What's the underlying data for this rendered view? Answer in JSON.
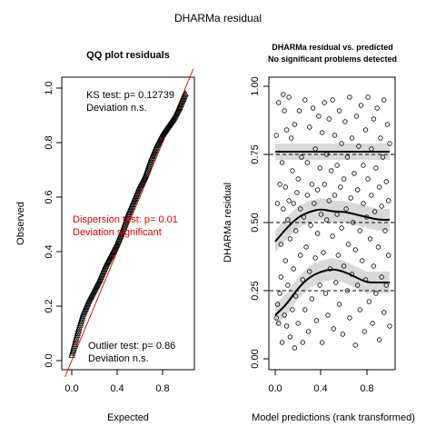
{
  "page": {
    "title": "DHARMa residual"
  },
  "qq": {
    "title": "QQ plot residuals",
    "xlabel": "Expected",
    "ylabel": "Observed",
    "xticks": [
      "0.0",
      "0.4",
      "0.8"
    ],
    "yticks": [
      "0.0",
      "0.2",
      "0.4",
      "0.6",
      "0.8",
      "1.0"
    ],
    "ks_line1": "KS test: p= 0.12739",
    "ks_line2": "Deviation  n.s.",
    "disp_line1": "Dispersion test: p= 0.01",
    "disp_line2": "Deviation significant",
    "out_line1": "Outlier test: p= 0.86",
    "out_line2": "Deviation  n.s."
  },
  "rvp": {
    "title1": "DHARMa residual vs. predicted",
    "title2": "No significant problems detected",
    "xlabel": "Model predictions (rank transformed)",
    "ylabel": "DHARMa residual",
    "xticks": [
      "0.0",
      "0.4",
      "0.8"
    ],
    "yticks": [
      "0.00",
      "0.25",
      "0.50",
      "0.75",
      "1.00"
    ]
  },
  "colors": {
    "significant": "#dd0000",
    "refline": "#dd0000",
    "band": "#d9d9d9",
    "ink": "#000000"
  },
  "chart_data": [
    {
      "type": "scatter",
      "title": "QQ plot residuals",
      "xlabel": "Expected",
      "ylabel": "Observed",
      "xlim": [
        0,
        1
      ],
      "ylim": [
        0,
        1
      ],
      "marker": "triangle",
      "reference_line": {
        "slope": 1,
        "intercept": 0
      },
      "quantile_curve": [
        [
          0.0,
          0.02
        ],
        [
          0.05,
          0.1
        ],
        [
          0.1,
          0.17
        ],
        [
          0.15,
          0.22
        ],
        [
          0.2,
          0.26
        ],
        [
          0.25,
          0.3
        ],
        [
          0.3,
          0.35
        ],
        [
          0.35,
          0.39
        ],
        [
          0.4,
          0.43
        ],
        [
          0.45,
          0.48
        ],
        [
          0.5,
          0.54
        ],
        [
          0.55,
          0.59
        ],
        [
          0.6,
          0.64
        ],
        [
          0.65,
          0.68
        ],
        [
          0.7,
          0.74
        ],
        [
          0.75,
          0.79
        ],
        [
          0.8,
          0.83
        ],
        [
          0.85,
          0.86
        ],
        [
          0.9,
          0.89
        ],
        [
          0.95,
          0.93
        ],
        [
          1.0,
          0.98
        ]
      ],
      "annotations": [
        "KS test: p= 0.12739",
        "Deviation  n.s.",
        "Dispersion test: p= 0.01",
        "Deviation significant",
        "Outlier test: p= 0.86",
        "Deviation  n.s."
      ]
    },
    {
      "type": "scatter",
      "title": "DHARMa residual vs. predicted",
      "subtitle": "No significant problems detected",
      "xlabel": "Model predictions (rank transformed)",
      "ylabel": "DHARMa residual",
      "xlim": [
        0,
        1
      ],
      "ylim": [
        0,
        1
      ],
      "reference_lines": [
        0.25,
        0.5,
        0.75
      ],
      "quantile_curves": [
        {
          "level": 0.25,
          "points": [
            [
              0.0,
              0.16
            ],
            [
              0.1,
              0.2
            ],
            [
              0.2,
              0.26
            ],
            [
              0.3,
              0.3
            ],
            [
              0.4,
              0.32
            ],
            [
              0.5,
              0.33
            ],
            [
              0.6,
              0.32
            ],
            [
              0.7,
              0.3
            ],
            [
              0.8,
              0.28
            ],
            [
              0.9,
              0.28
            ],
            [
              1.0,
              0.28
            ]
          ],
          "band_halfwidth": 0.04
        },
        {
          "level": 0.5,
          "points": [
            [
              0.0,
              0.43
            ],
            [
              0.1,
              0.48
            ],
            [
              0.2,
              0.52
            ],
            [
              0.3,
              0.54
            ],
            [
              0.4,
              0.55
            ],
            [
              0.5,
              0.54
            ],
            [
              0.6,
              0.54
            ],
            [
              0.7,
              0.53
            ],
            [
              0.8,
              0.52
            ],
            [
              0.9,
              0.51
            ],
            [
              1.0,
              0.51
            ]
          ],
          "band_halfwidth": 0.04
        },
        {
          "level": 0.75,
          "points": [
            [
              0.0,
              0.76
            ],
            [
              0.2,
              0.76
            ],
            [
              0.4,
              0.76
            ],
            [
              0.6,
              0.76
            ],
            [
              0.8,
              0.76
            ],
            [
              1.0,
              0.76
            ]
          ],
          "band_halfwidth": 0.03
        }
      ],
      "points": [
        [
          0.01,
          0.15
        ],
        [
          0.01,
          0.82
        ],
        [
          0.02,
          0.2
        ],
        [
          0.02,
          0.57
        ],
        [
          0.03,
          0.13
        ],
        [
          0.03,
          0.94
        ],
        [
          0.04,
          0.24
        ],
        [
          0.04,
          0.64
        ],
        [
          0.05,
          0.42
        ],
        [
          0.05,
          0.3
        ],
        [
          0.06,
          0.06
        ],
        [
          0.06,
          0.72
        ],
        [
          0.07,
          0.55
        ],
        [
          0.07,
          0.97
        ],
        [
          0.08,
          0.16
        ],
        [
          0.08,
          0.91
        ],
        [
          0.09,
          0.36
        ],
        [
          0.09,
          0.63
        ],
        [
          0.1,
          0.12
        ],
        [
          0.1,
          0.84
        ],
        [
          0.11,
          0.27
        ],
        [
          0.11,
          0.51
        ],
        [
          0.12,
          0.58
        ],
        [
          0.12,
          0.96
        ],
        [
          0.13,
          0.08
        ],
        [
          0.13,
          0.44
        ],
        [
          0.14,
          0.81
        ],
        [
          0.15,
          0.18
        ],
        [
          0.15,
          0.69
        ],
        [
          0.16,
          0.33
        ],
        [
          0.16,
          0.57
        ],
        [
          0.17,
          0.04
        ],
        [
          0.17,
          0.86
        ],
        [
          0.18,
          0.47
        ],
        [
          0.18,
          0.23
        ],
        [
          0.19,
          0.61
        ],
        [
          0.2,
          0.13
        ],
        [
          0.2,
          0.66
        ],
        [
          0.21,
          0.91
        ],
        [
          0.22,
          0.38
        ],
        [
          0.22,
          0.55
        ],
        [
          0.23,
          0.74
        ],
        [
          0.24,
          0.29
        ],
        [
          0.24,
          0.06
        ],
        [
          0.25,
          0.52
        ],
        [
          0.26,
          0.95
        ],
        [
          0.26,
          0.18
        ],
        [
          0.27,
          0.41
        ],
        [
          0.28,
          0.6
        ],
        [
          0.28,
          0.72
        ],
        [
          0.29,
          0.1
        ],
        [
          0.3,
          0.32
        ],
        [
          0.3,
          0.85
        ],
        [
          0.31,
          0.49
        ],
        [
          0.32,
          0.64
        ],
        [
          0.32,
          0.22
        ],
        [
          0.33,
          0.92
        ],
        [
          0.34,
          0.57
        ],
        [
          0.35,
          0.37
        ],
        [
          0.35,
          0.77
        ],
        [
          0.36,
          0.14
        ],
        [
          0.37,
          0.46
        ],
        [
          0.37,
          0.62
        ],
        [
          0.38,
          0.89
        ],
        [
          0.39,
          0.27
        ],
        [
          0.39,
          0.7
        ],
        [
          0.4,
          0.53
        ],
        [
          0.41,
          0.06
        ],
        [
          0.41,
          0.83
        ],
        [
          0.42,
          0.39
        ],
        [
          0.43,
          0.64
        ],
        [
          0.43,
          0.94
        ],
        [
          0.44,
          0.24
        ],
        [
          0.45,
          0.51
        ],
        [
          0.45,
          0.75
        ],
        [
          0.46,
          0.16
        ],
        [
          0.47,
          0.58
        ],
        [
          0.47,
          0.88
        ],
        [
          0.48,
          0.33
        ],
        [
          0.49,
          0.69
        ],
        [
          0.5,
          0.45
        ],
        [
          0.5,
          0.95
        ],
        [
          0.51,
          0.11
        ],
        [
          0.52,
          0.6
        ],
        [
          0.52,
          0.82
        ],
        [
          0.53,
          0.28
        ],
        [
          0.54,
          0.53
        ],
        [
          0.54,
          0.71
        ],
        [
          0.55,
          0.38
        ],
        [
          0.56,
          0.91
        ],
        [
          0.56,
          0.2
        ],
        [
          0.57,
          0.63
        ],
        [
          0.58,
          0.48
        ],
        [
          0.58,
          0.79
        ],
        [
          0.59,
          0.09
        ],
        [
          0.6,
          0.34
        ],
        [
          0.6,
          0.66
        ],
        [
          0.61,
          0.87
        ],
        [
          0.62,
          0.55
        ],
        [
          0.63,
          0.25
        ],
        [
          0.63,
          0.74
        ],
        [
          0.64,
          0.42
        ],
        [
          0.65,
          0.96
        ],
        [
          0.65,
          0.15
        ],
        [
          0.66,
          0.59
        ],
        [
          0.67,
          0.31
        ],
        [
          0.67,
          0.81
        ],
        [
          0.68,
          0.5
        ],
        [
          0.69,
          0.68
        ],
        [
          0.7,
          0.05
        ],
        [
          0.7,
          0.4
        ],
        [
          0.71,
          0.89
        ],
        [
          0.72,
          0.27
        ],
        [
          0.72,
          0.62
        ],
        [
          0.73,
          0.78
        ],
        [
          0.74,
          0.18
        ],
        [
          0.74,
          0.47
        ],
        [
          0.75,
          0.93
        ],
        [
          0.76,
          0.36
        ],
        [
          0.77,
          0.57
        ],
        [
          0.77,
          0.71
        ],
        [
          0.78,
          0.1
        ],
        [
          0.79,
          0.84
        ],
        [
          0.79,
          0.29
        ],
        [
          0.8,
          0.52
        ],
        [
          0.81,
          0.66
        ],
        [
          0.81,
          0.96
        ],
        [
          0.82,
          0.21
        ],
        [
          0.83,
          0.44
        ],
        [
          0.84,
          0.77
        ],
        [
          0.84,
          0.6
        ],
        [
          0.85,
          0.13
        ],
        [
          0.86,
          0.88
        ],
        [
          0.86,
          0.34
        ],
        [
          0.87,
          0.54
        ],
        [
          0.88,
          0.7
        ],
        [
          0.88,
          0.24
        ],
        [
          0.89,
          0.92
        ],
        [
          0.9,
          0.41
        ],
        [
          0.91,
          0.63
        ],
        [
          0.91,
          0.07
        ],
        [
          0.92,
          0.81
        ],
        [
          0.93,
          0.3
        ],
        [
          0.93,
          0.56
        ],
        [
          0.94,
          0.74
        ],
        [
          0.95,
          0.17
        ],
        [
          0.95,
          0.95
        ],
        [
          0.96,
          0.47
        ],
        [
          0.97,
          0.65
        ],
        [
          0.97,
          0.27
        ],
        [
          0.98,
          0.86
        ],
        [
          0.99,
          0.38
        ],
        [
          0.99,
          0.58
        ],
        [
          1.0,
          0.12
        ],
        [
          1.0,
          0.79
        ]
      ]
    }
  ]
}
